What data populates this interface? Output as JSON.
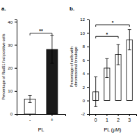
{
  "chart_data": [
    {
      "type": "bar",
      "title": "a.",
      "categories": [
        "-",
        "+"
      ],
      "values": [
        6.5,
        28.0
      ],
      "errors": [
        1.5,
        6.0
      ],
      "colors": [
        "white",
        "#1a1a1a"
      ],
      "x_label": "PL",
      "y_label": "Percentage of Rad51 foci positive cells",
      "ylim": [
        0,
        41
      ],
      "yticks": [
        0,
        10,
        20,
        30,
        40
      ],
      "annotations": [
        {
          "text": "**",
          "from": "-",
          "to": "+",
          "y": 35.0
        }
      ]
    },
    {
      "type": "bar",
      "title": "b.",
      "categories": [
        "0",
        "1",
        "2",
        "3"
      ],
      "values": [
        1.3,
        4.8,
        6.8,
        9.0
      ],
      "errors": [
        2.2,
        1.4,
        1.5,
        1.5
      ],
      "colors": [
        "white",
        "white",
        "white",
        "white"
      ],
      "x_label": "PL (μM)",
      "y_label": "Percentage of cells with\nchromosomal breakage",
      "ylim": [
        -2,
        12
      ],
      "yticks": [
        -2,
        0,
        2,
        4,
        6,
        8,
        10,
        12
      ],
      "annotations": [
        {
          "text": "*",
          "from": "0",
          "to": "2",
          "y": 9.5
        },
        {
          "text": "*",
          "from": "0",
          "to": "3",
          "y": 11.2
        }
      ]
    }
  ]
}
